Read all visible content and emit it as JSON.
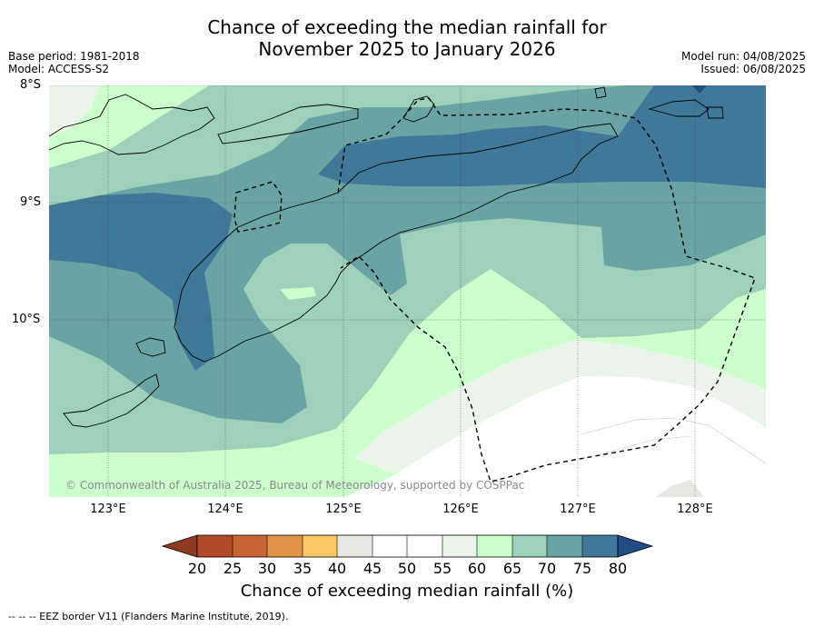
{
  "title_line1": "Chance of exceeding the median rainfall for",
  "title_line2": "November 2025 to January 2026",
  "meta_left": [
    "Base period: 1981-2018",
    "Model: ACCESS-S2"
  ],
  "meta_right": [
    "Model run: 04/08/2025",
    "Issued: 06/08/2025"
  ],
  "lat_ticks": [
    "8°S",
    "9°S",
    "10°S"
  ],
  "lon_ticks": [
    "123°E",
    "124°E",
    "125°E",
    "126°E",
    "127°E",
    "128°E"
  ],
  "attribution": "© Commonwealth of Australia 2025, Bureau of Meteorology, supported by COSPPac",
  "colorbar": {
    "label": "Chance of exceeding median rainfall (%)",
    "ticks": [
      "20",
      "25",
      "30",
      "35",
      "40",
      "45",
      "50",
      "55",
      "60",
      "65",
      "70",
      "75",
      "80"
    ],
    "colors": {
      "below_20": "#8e3b22",
      "20-25": "#b24a28",
      "25-30": "#c96434",
      "30-35": "#e0944a",
      "35-40": "#fdc864",
      "40-45": "#e8e8e3",
      "45-50": "#ffffff",
      "50-55": "#ffffff",
      "55-60": "#eaf5ea",
      "60-65": "#ccffcc",
      "65-70": "#9dd1ba",
      "70-75": "#6aa3a3",
      "75-80": "#3f7898",
      "above_80": "#1f4e85"
    }
  },
  "footnote": "-- -- -- EEZ border V11 (Flanders Marine Institute, 2019)."
}
